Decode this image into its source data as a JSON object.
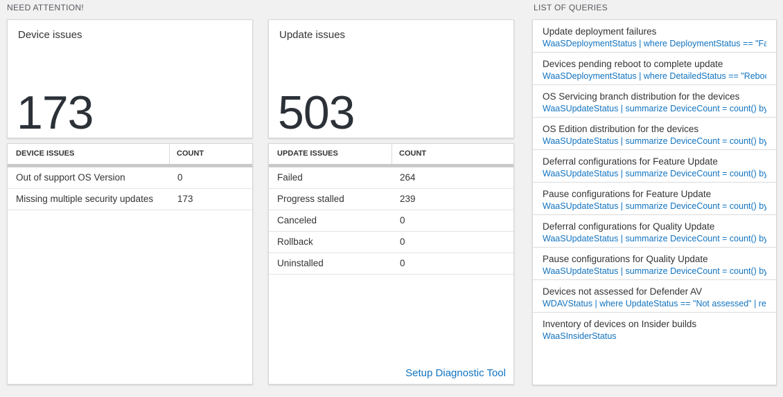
{
  "colors": {
    "link_blue": "#1173c0",
    "big_number": "#2b3137",
    "page_background": "#f1f1f1"
  },
  "need_attention": {
    "header": "NEED ATTENTION!",
    "device_card": {
      "title": "Device issues",
      "value": "173",
      "table": {
        "columns": [
          "DEVICE ISSUES",
          "COUNT"
        ],
        "rows": [
          [
            "Out of support OS Version",
            "0"
          ],
          [
            "Missing multiple security updates",
            "173"
          ]
        ]
      }
    },
    "update_card": {
      "title": "Update issues",
      "value": "503",
      "table": {
        "columns": [
          "UPDATE ISSUES",
          "COUNT"
        ],
        "rows": [
          [
            "Failed",
            "264"
          ],
          [
            "Progress stalled",
            "239"
          ],
          [
            "Canceled",
            "0"
          ],
          [
            "Rollback",
            "0"
          ],
          [
            "Uninstalled",
            "0"
          ]
        ]
      },
      "link": "Setup Diagnostic Tool"
    }
  },
  "queries": {
    "header": "LIST OF QUERIES",
    "items": [
      {
        "title": "Update deployment failures",
        "query": "WaaSDeploymentStatus | where DeploymentStatus == \"Failed\" |..."
      },
      {
        "title": "Devices pending reboot to complete update",
        "query": "WaaSDeploymentStatus | where DetailedStatus == \"Reboot pend..."
      },
      {
        "title": "OS Servicing branch distribution for the devices",
        "query": "WaaSUpdateStatus | summarize DeviceCount = count() by OSSer..."
      },
      {
        "title": "OS Edition distribution for the devices",
        "query": "WaaSUpdateStatus | summarize DeviceCount = count() by OSEdit..."
      },
      {
        "title": "Deferral configurations for Feature Update",
        "query": "WaaSUpdateStatus | summarize DeviceCount = count() by Featur..."
      },
      {
        "title": "Pause configurations for Feature Update",
        "query": "WaaSUpdateStatus | summarize DeviceCount = count() by Featur..."
      },
      {
        "title": "Deferral configurations for Quality Update",
        "query": "WaaSUpdateStatus | summarize DeviceCount = count() by Qualit..."
      },
      {
        "title": "Pause configurations for Quality Update",
        "query": "WaaSUpdateStatus | summarize DeviceCount = count() by Qualit..."
      },
      {
        "title": "Devices not assessed for Defender AV",
        "query": "WDAVStatus | where UpdateStatus == \"Not assessed\" | render ta..."
      },
      {
        "title": "Inventory of devices on Insider builds",
        "query": "WaaSInsiderStatus"
      }
    ]
  }
}
